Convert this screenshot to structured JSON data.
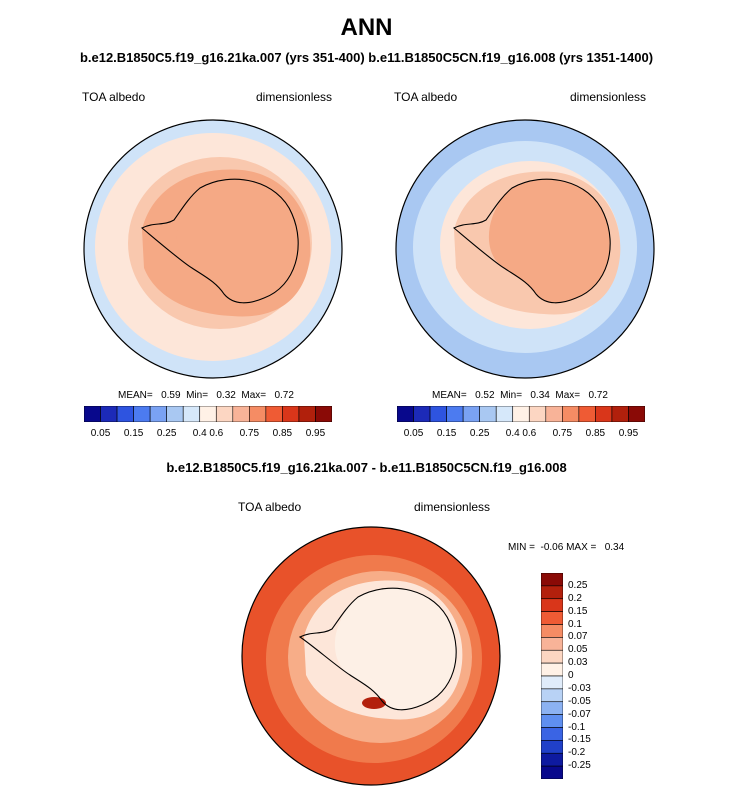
{
  "title": "ANN",
  "subtitle": "b.e12.B1850C5.f19_g16.21ka.007 (yrs 351-400) b.e11.B1850C5CN.f19_g16.008 (yrs 1351-1400)",
  "panels": [
    {
      "variable": "TOA albedo",
      "units": "dimensionless",
      "stats": "MEAN=   0.59  Min=   0.32  Max=   0.72",
      "ring_colors": [
        "#cfe3f8",
        "#fde6d9",
        "#f9c8ae",
        "#f5a985",
        "#f5a985"
      ]
    },
    {
      "variable": "TOA albedo",
      "units": "dimensionless",
      "stats": "MEAN=   0.52  Min=   0.34  Max=   0.72",
      "ring_colors": [
        "#a9c8f2",
        "#cfe3f8",
        "#fde6d9",
        "#f9c8ae",
        "#f5a985"
      ]
    }
  ],
  "abs_colorbar": {
    "colors": [
      "#08088c",
      "#1c2ab8",
      "#2e54e0",
      "#4c7bf0",
      "#7aa2f3",
      "#a9c8f2",
      "#d6e8fa",
      "#fff1e6",
      "#fcd6c2",
      "#f8b398",
      "#f58c64",
      "#ef5b34",
      "#d9361a",
      "#b1200c",
      "#8a0a06"
    ],
    "ticks": [
      "0.05",
      "0.15",
      "0.25",
      "0.4",
      "0.6",
      "0.75",
      "0.85",
      "0.95"
    ]
  },
  "diff": {
    "title": "b.e12.B1850C5.f19_g16.21ka.007 - b.e11.B1850C5CN.f19_g16.008",
    "variable": "TOA albedo",
    "units": "dimensionless",
    "minmax": "MIN =  -0.06 MAX =   0.34",
    "ring_colors": [
      "#e8522a",
      "#f07a4c",
      "#f7ad88",
      "#fde6d9",
      "#fdf0e6"
    ]
  },
  "diff_colorbar": {
    "colors": [
      "#8a0a06",
      "#b3200c",
      "#d9361a",
      "#ef5b34",
      "#f58c64",
      "#f8b398",
      "#fcd6c2",
      "#fff1e6",
      "#e0ecfa",
      "#b8d2f5",
      "#8cb2f2",
      "#5f8ff0",
      "#3a64e4",
      "#2040c8",
      "#0e1aa0",
      "#08088c"
    ],
    "labels": [
      "0.25",
      "0.2",
      "0.15",
      "0.1",
      "0.07",
      "0.05",
      "0.03",
      "0",
      "-0.03",
      "-0.05",
      "-0.07",
      "-0.1",
      "-0.15",
      "-0.2",
      "-0.25"
    ]
  }
}
